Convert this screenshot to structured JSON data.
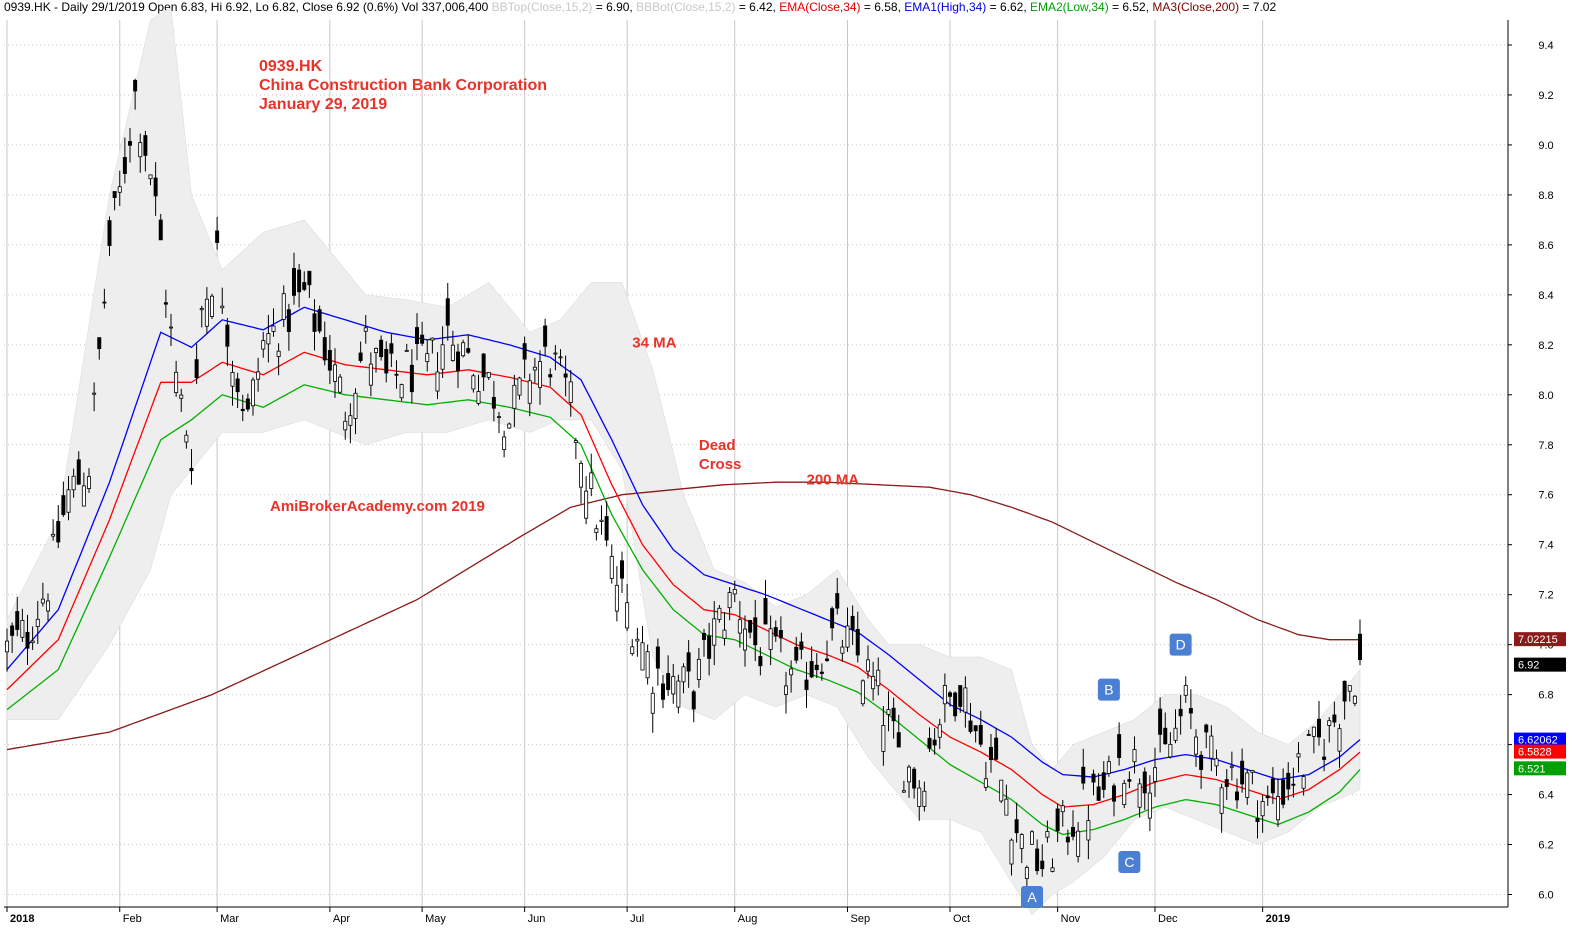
{
  "header": {
    "main": "0939.HK - Daily 29/1/2019 Open 6.83, Hi 6.92, Lo 6.82, Close 6.92 (0.6%) Vol 337,006,400 ",
    "bbtop": "BBTop(Close,15,2)",
    "bbtop_val": " = 6.90, ",
    "bbbot": "BBBot(Close,15,2)",
    "bbbot_val": " = 6.42, ",
    "ema": "EMA(Close,34)",
    "ema_val": " = 6.58, ",
    "ema1": "EMA1(High,34)",
    "ema1_val": " = 6.62, ",
    "ema2": "EMA2(Low,34)",
    "ema2_val": " = 6.52, ",
    "ma3": "MA3(Close,200)",
    "ma3_val": " = 7.02"
  },
  "colors": {
    "ema_close": "#ff0000",
    "ema_high": "#0000ff",
    "ema_low": "#00b000",
    "ma200": "#8b1a1a",
    "band_fill": "#eeeeee",
    "annotation": "#e8322a",
    "label_box": "#4a7fd4",
    "candle": "#000000"
  },
  "chart_data": {
    "type": "candlestick",
    "title": "0939.HK\nChina Construction Bank Corporation\nJanuary 29, 2019",
    "title_lines": [
      "0939.HK",
      "China Construction Bank Corporation",
      "January 29, 2019"
    ],
    "ylim": [
      5.95,
      9.5
    ],
    "y_ticks": [
      "6.0",
      "6.2",
      "6.4",
      "6.6",
      "6.8",
      "7.0",
      "7.2",
      "7.4",
      "7.6",
      "7.8",
      "8.0",
      "8.2",
      "8.4",
      "8.6",
      "8.8",
      "9.0",
      "9.2",
      "9.4"
    ],
    "x_months": [
      "2018",
      "Feb",
      "Mar",
      "Apr",
      "May",
      "Jun",
      "Jul",
      "Aug",
      "Sep",
      "Oct",
      "Nov",
      "Dec",
      "2019"
    ],
    "x_month_day_index": [
      0,
      22,
      41,
      63,
      81,
      101,
      121,
      142,
      164,
      184,
      205,
      224,
      245
    ],
    "total_days": 265,
    "grid": true,
    "watermark": "AmiBrokerAcademy.com  2019",
    "annotations": [
      {
        "text": "34 MA",
        "day": 122,
        "y": 8.19
      },
      {
        "text": "Dead\nCross",
        "day": 135,
        "y": 7.78
      },
      {
        "text": "200 MA",
        "day": 156,
        "y": 7.64
      }
    ],
    "wave_labels": [
      {
        "text": "A",
        "day": 200,
        "y": 5.99
      },
      {
        "text": "B",
        "day": 215,
        "y": 6.82
      },
      {
        "text": "C",
        "day": 219,
        "y": 6.13
      },
      {
        "text": "D",
        "day": 229,
        "y": 7.0
      }
    ],
    "value_tags": [
      {
        "text": "7.02215",
        "y": 7.022,
        "color": "#8b1a1a"
      },
      {
        "text": "6.92",
        "y": 6.92,
        "color": "#000000"
      },
      {
        "text": "6.62062",
        "y": 6.62,
        "color": "#0000ff"
      },
      {
        "text": "6.5828",
        "y": 6.572,
        "color": "#ff0000"
      },
      {
        "text": "6.521",
        "y": 6.505,
        "color": "#00a000"
      }
    ],
    "close_anchors": [
      [
        0,
        6.98
      ],
      [
        4,
        7.05
      ],
      [
        8,
        7.25
      ],
      [
        12,
        7.6
      ],
      [
        16,
        7.72
      ],
      [
        20,
        8.6
      ],
      [
        22,
        8.8
      ],
      [
        25,
        9.2
      ],
      [
        28,
        8.9
      ],
      [
        30,
        8.6
      ],
      [
        33,
        8.05
      ],
      [
        36,
        7.78
      ],
      [
        38,
        8.35
      ],
      [
        41,
        8.55
      ],
      [
        44,
        8.15
      ],
      [
        47,
        7.9
      ],
      [
        50,
        8.2
      ],
      [
        54,
        8.3
      ],
      [
        58,
        8.4
      ],
      [
        62,
        8.2
      ],
      [
        66,
        7.95
      ],
      [
        70,
        8.2
      ],
      [
        74,
        8.05
      ],
      [
        78,
        8.1
      ],
      [
        82,
        8.1
      ],
      [
        86,
        8.25
      ],
      [
        90,
        8.15
      ],
      [
        94,
        8.05
      ],
      [
        98,
        7.9
      ],
      [
        102,
        8.1
      ],
      [
        106,
        8.15
      ],
      [
        110,
        7.95
      ],
      [
        114,
        7.6
      ],
      [
        118,
        7.3
      ],
      [
        122,
        7.1
      ],
      [
        126,
        6.9
      ],
      [
        130,
        6.85
      ],
      [
        134,
        6.82
      ],
      [
        138,
        7.05
      ],
      [
        142,
        7.2
      ],
      [
        146,
        7.0
      ],
      [
        150,
        6.95
      ],
      [
        154,
        6.85
      ],
      [
        158,
        6.95
      ],
      [
        162,
        7.05
      ],
      [
        166,
        6.95
      ],
      [
        170,
        6.8
      ],
      [
        174,
        6.55
      ],
      [
        178,
        6.45
      ],
      [
        182,
        6.72
      ],
      [
        186,
        6.85
      ],
      [
        190,
        6.6
      ],
      [
        194,
        6.45
      ],
      [
        198,
        6.2
      ],
      [
        202,
        6.12
      ],
      [
        206,
        6.25
      ],
      [
        210,
        6.35
      ],
      [
        214,
        6.4
      ],
      [
        218,
        6.55
      ],
      [
        222,
        6.5
      ],
      [
        226,
        6.55
      ],
      [
        230,
        6.75
      ],
      [
        234,
        6.55
      ],
      [
        238,
        6.5
      ],
      [
        242,
        6.45
      ],
      [
        246,
        6.35
      ],
      [
        250,
        6.45
      ],
      [
        254,
        6.55
      ],
      [
        258,
        6.65
      ],
      [
        262,
        6.85
      ],
      [
        264,
        6.92
      ]
    ],
    "ema_close_anchors": [
      [
        0,
        6.82
      ],
      [
        10,
        7.02
      ],
      [
        20,
        7.5
      ],
      [
        30,
        8.05
      ],
      [
        36,
        8.05
      ],
      [
        42,
        8.13
      ],
      [
        50,
        8.08
      ],
      [
        58,
        8.17
      ],
      [
        66,
        8.12
      ],
      [
        74,
        8.1
      ],
      [
        82,
        8.08
      ],
      [
        90,
        8.1
      ],
      [
        98,
        8.07
      ],
      [
        106,
        8.03
      ],
      [
        112,
        7.92
      ],
      [
        118,
        7.64
      ],
      [
        124,
        7.4
      ],
      [
        130,
        7.24
      ],
      [
        136,
        7.14
      ],
      [
        142,
        7.12
      ],
      [
        148,
        7.06
      ],
      [
        154,
        7.0
      ],
      [
        160,
        6.96
      ],
      [
        166,
        6.91
      ],
      [
        172,
        6.82
      ],
      [
        178,
        6.72
      ],
      [
        184,
        6.63
      ],
      [
        190,
        6.57
      ],
      [
        196,
        6.5
      ],
      [
        202,
        6.4
      ],
      [
        206,
        6.35
      ],
      [
        212,
        6.36
      ],
      [
        218,
        6.4
      ],
      [
        224,
        6.45
      ],
      [
        230,
        6.48
      ],
      [
        236,
        6.46
      ],
      [
        242,
        6.42
      ],
      [
        248,
        6.38
      ],
      [
        254,
        6.42
      ],
      [
        260,
        6.5
      ],
      [
        264,
        6.57
      ]
    ],
    "ema_high_anchors": [
      [
        0,
        6.9
      ],
      [
        10,
        7.14
      ],
      [
        20,
        7.65
      ],
      [
        30,
        8.25
      ],
      [
        36,
        8.19
      ],
      [
        42,
        8.3
      ],
      [
        50,
        8.26
      ],
      [
        58,
        8.35
      ],
      [
        66,
        8.3
      ],
      [
        74,
        8.25
      ],
      [
        82,
        8.22
      ],
      [
        90,
        8.24
      ],
      [
        98,
        8.2
      ],
      [
        106,
        8.15
      ],
      [
        112,
        8.06
      ],
      [
        118,
        7.82
      ],
      [
        124,
        7.56
      ],
      [
        130,
        7.38
      ],
      [
        136,
        7.28
      ],
      [
        142,
        7.24
      ],
      [
        148,
        7.2
      ],
      [
        154,
        7.15
      ],
      [
        160,
        7.1
      ],
      [
        166,
        7.05
      ],
      [
        172,
        6.96
      ],
      [
        178,
        6.86
      ],
      [
        184,
        6.76
      ],
      [
        190,
        6.7
      ],
      [
        196,
        6.63
      ],
      [
        202,
        6.53
      ],
      [
        206,
        6.48
      ],
      [
        212,
        6.47
      ],
      [
        218,
        6.5
      ],
      [
        224,
        6.54
      ],
      [
        230,
        6.56
      ],
      [
        236,
        6.54
      ],
      [
        242,
        6.5
      ],
      [
        248,
        6.46
      ],
      [
        254,
        6.48
      ],
      [
        260,
        6.55
      ],
      [
        264,
        6.62
      ]
    ],
    "ema_low_anchors": [
      [
        0,
        6.74
      ],
      [
        10,
        6.9
      ],
      [
        20,
        7.35
      ],
      [
        30,
        7.82
      ],
      [
        36,
        7.9
      ],
      [
        42,
        8.0
      ],
      [
        50,
        7.95
      ],
      [
        58,
        8.04
      ],
      [
        66,
        8.0
      ],
      [
        74,
        7.98
      ],
      [
        82,
        7.96
      ],
      [
        90,
        7.98
      ],
      [
        98,
        7.95
      ],
      [
        106,
        7.91
      ],
      [
        112,
        7.8
      ],
      [
        118,
        7.52
      ],
      [
        124,
        7.3
      ],
      [
        130,
        7.14
      ],
      [
        136,
        7.04
      ],
      [
        142,
        7.02
      ],
      [
        148,
        6.96
      ],
      [
        154,
        6.9
      ],
      [
        160,
        6.86
      ],
      [
        166,
        6.81
      ],
      [
        172,
        6.72
      ],
      [
        178,
        6.62
      ],
      [
        184,
        6.52
      ],
      [
        190,
        6.45
      ],
      [
        196,
        6.38
      ],
      [
        202,
        6.28
      ],
      [
        206,
        6.24
      ],
      [
        212,
        6.26
      ],
      [
        218,
        6.3
      ],
      [
        224,
        6.35
      ],
      [
        230,
        6.38
      ],
      [
        236,
        6.36
      ],
      [
        242,
        6.32
      ],
      [
        248,
        6.28
      ],
      [
        254,
        6.33
      ],
      [
        260,
        6.41
      ],
      [
        264,
        6.5
      ]
    ],
    "ma200_anchors": [
      [
        0,
        6.58
      ],
      [
        20,
        6.65
      ],
      [
        40,
        6.8
      ],
      [
        60,
        6.99
      ],
      [
        80,
        7.18
      ],
      [
        100,
        7.43
      ],
      [
        110,
        7.55
      ],
      [
        120,
        7.6
      ],
      [
        130,
        7.62
      ],
      [
        140,
        7.64
      ],
      [
        150,
        7.65
      ],
      [
        160,
        7.65
      ],
      [
        170,
        7.64
      ],
      [
        180,
        7.63
      ],
      [
        188,
        7.6
      ],
      [
        196,
        7.55
      ],
      [
        204,
        7.49
      ],
      [
        212,
        7.41
      ],
      [
        220,
        7.33
      ],
      [
        228,
        7.25
      ],
      [
        236,
        7.18
      ],
      [
        244,
        7.1
      ],
      [
        252,
        7.04
      ],
      [
        258,
        7.02
      ],
      [
        264,
        7.02
      ]
    ],
    "bb_upper_anchors": [
      [
        0,
        7.1
      ],
      [
        10,
        7.5
      ],
      [
        20,
        8.8
      ],
      [
        28,
        9.5
      ],
      [
        32,
        9.55
      ],
      [
        36,
        8.8
      ],
      [
        42,
        8.5
      ],
      [
        50,
        8.65
      ],
      [
        58,
        8.7
      ],
      [
        64,
        8.55
      ],
      [
        70,
        8.4
      ],
      [
        78,
        8.38
      ],
      [
        86,
        8.35
      ],
      [
        94,
        8.45
      ],
      [
        102,
        8.25
      ],
      [
        108,
        8.3
      ],
      [
        114,
        8.45
      ],
      [
        120,
        8.45
      ],
      [
        126,
        8.1
      ],
      [
        132,
        7.6
      ],
      [
        138,
        7.3
      ],
      [
        144,
        7.25
      ],
      [
        150,
        7.15
      ],
      [
        156,
        7.2
      ],
      [
        162,
        7.3
      ],
      [
        168,
        7.1
      ],
      [
        172,
        7.0
      ],
      [
        178,
        7.0
      ],
      [
        184,
        6.95
      ],
      [
        190,
        6.95
      ],
      [
        196,
        6.9
      ],
      [
        200,
        6.6
      ],
      [
        204,
        6.5
      ],
      [
        208,
        6.6
      ],
      [
        214,
        6.65
      ],
      [
        220,
        6.7
      ],
      [
        226,
        6.8
      ],
      [
        232,
        6.8
      ],
      [
        238,
        6.75
      ],
      [
        244,
        6.65
      ],
      [
        250,
        6.6
      ],
      [
        256,
        6.7
      ],
      [
        262,
        6.85
      ],
      [
        264,
        6.9
      ]
    ],
    "bb_lower_anchors": [
      [
        0,
        6.7
      ],
      [
        10,
        6.7
      ],
      [
        20,
        7.0
      ],
      [
        28,
        7.3
      ],
      [
        32,
        7.6
      ],
      [
        36,
        7.7
      ],
      [
        42,
        7.85
      ],
      [
        50,
        7.85
      ],
      [
        58,
        7.9
      ],
      [
        64,
        7.85
      ],
      [
        70,
        7.8
      ],
      [
        78,
        7.85
      ],
      [
        86,
        7.85
      ],
      [
        94,
        7.9
      ],
      [
        102,
        7.85
      ],
      [
        108,
        7.9
      ],
      [
        114,
        7.9
      ],
      [
        120,
        7.7
      ],
      [
        126,
        6.95
      ],
      [
        132,
        6.75
      ],
      [
        138,
        6.7
      ],
      [
        144,
        6.8
      ],
      [
        150,
        6.75
      ],
      [
        156,
        6.8
      ],
      [
        162,
        6.75
      ],
      [
        168,
        6.55
      ],
      [
        172,
        6.45
      ],
      [
        178,
        6.3
      ],
      [
        184,
        6.3
      ],
      [
        190,
        6.25
      ],
      [
        196,
        6.05
      ],
      [
        200,
        5.92
      ],
      [
        204,
        6.0
      ],
      [
        208,
        6.05
      ],
      [
        214,
        6.15
      ],
      [
        220,
        6.3
      ],
      [
        226,
        6.35
      ],
      [
        232,
        6.3
      ],
      [
        238,
        6.25
      ],
      [
        244,
        6.2
      ],
      [
        250,
        6.25
      ],
      [
        256,
        6.35
      ],
      [
        262,
        6.4
      ],
      [
        264,
        6.42
      ]
    ]
  }
}
